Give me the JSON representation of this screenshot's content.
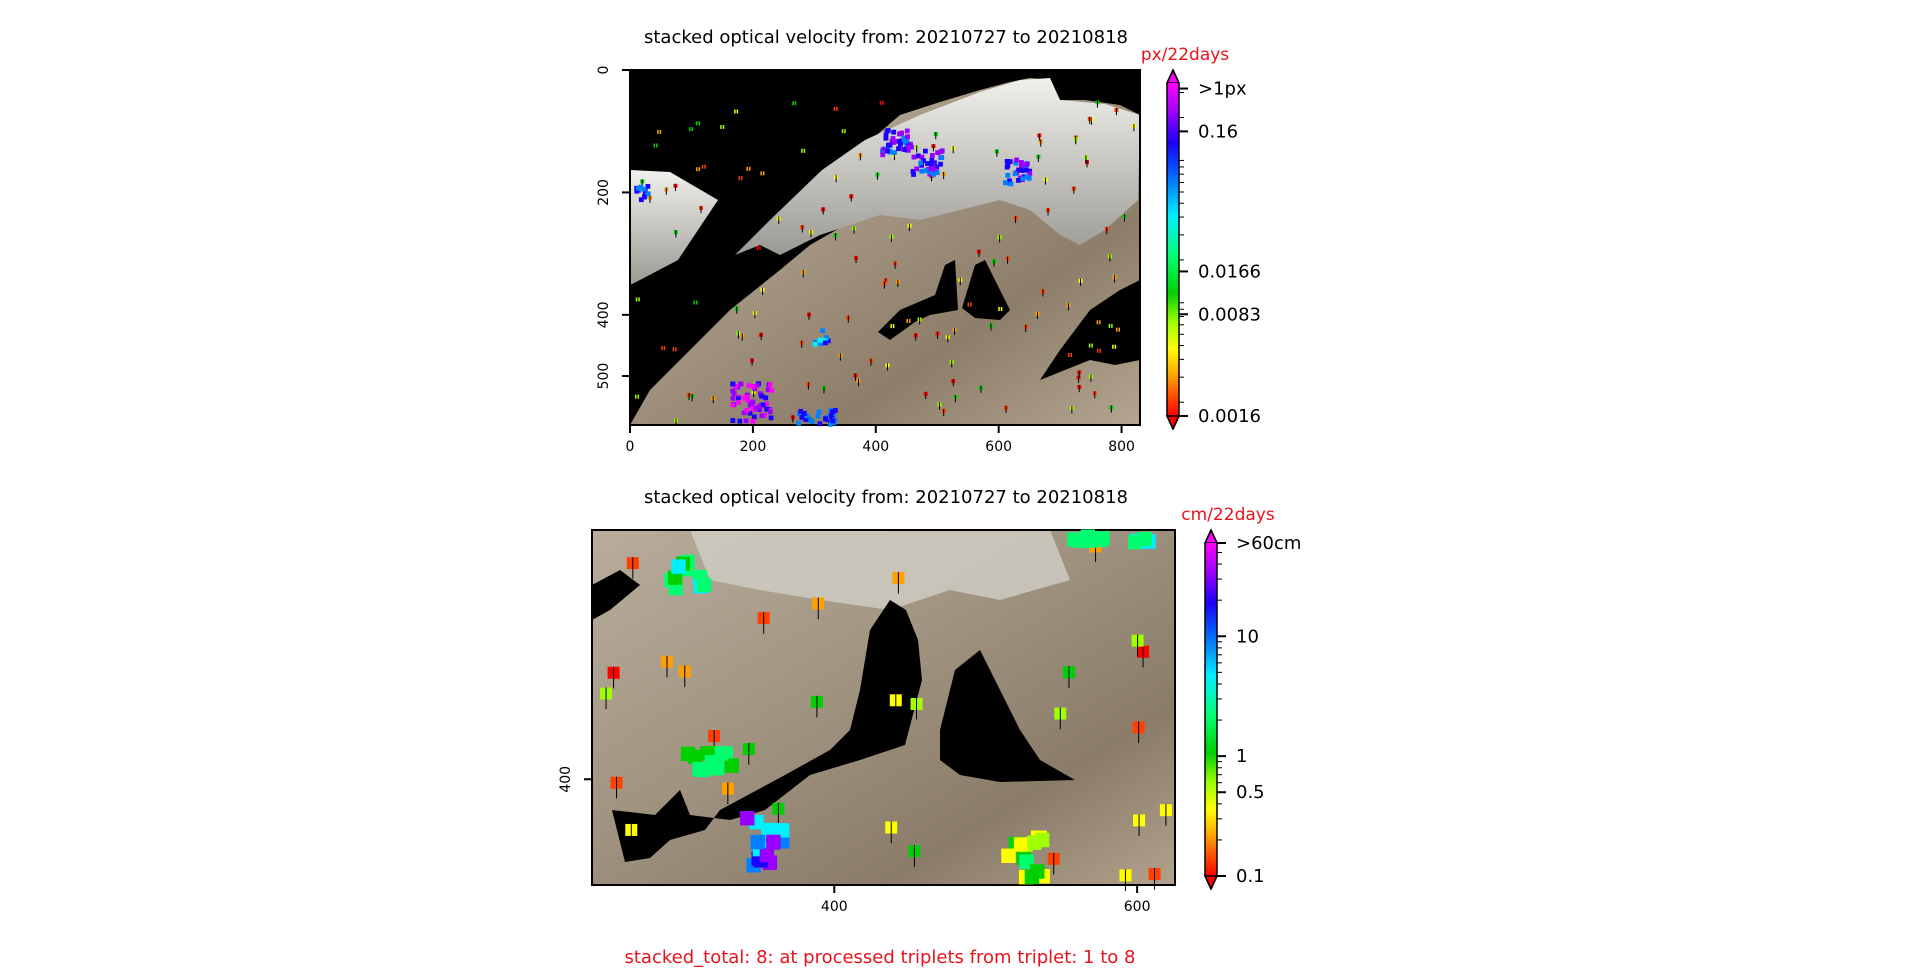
{
  "figure": {
    "footer": "stacked_total: 8: at processed triplets from triplet: 1 to 8"
  },
  "colors": {
    "bar_top": "#ff00ff",
    "bar_stops": [
      "#ff00ff",
      "#9a00ff",
      "#1a00ff",
      "#0080ff",
      "#00f0ff",
      "#00ff70",
      "#00d000",
      "#a0ff00",
      "#ffff00",
      "#ffa000",
      "#ff4000",
      "#ff0000"
    ],
    "background": "#000000",
    "terrain": "#9a8c78",
    "snow": "#dcdcd6"
  },
  "chart_data": [
    {
      "type": "heatmap",
      "name": "top-panel",
      "title": "stacked optical velocity from: 20210727 to 20210818",
      "xlim": [
        0,
        830
      ],
      "ylim": [
        580,
        0
      ],
      "xticks": [
        0,
        200,
        400,
        600,
        800
      ],
      "yticks": [
        0,
        200,
        400,
        500
      ],
      "colorbar": {
        "unit": "px/22days",
        "scale": "log",
        "range": [
          0.0016,
          0.35
        ],
        "extend": "both",
        "ticks": [
          {
            "value": 0.0016,
            "label": "0.0016"
          },
          {
            "value": 0.0083,
            "label": "0.0083"
          },
          {
            "value": 0.0166,
            "label": "0.0166"
          },
          {
            "value": 0.16,
            "label": "0.16"
          },
          {
            "value": 0.32,
            "label": ">1px"
          }
        ]
      }
    },
    {
      "type": "heatmap",
      "name": "bottom-panel",
      "title": "stacked optical velocity from: 20210727 to 20210818",
      "xlim": [
        240,
        625
      ],
      "ylim": [
        470,
        235
      ],
      "xticks": [
        400,
        600
      ],
      "yticks": [
        400
      ],
      "colorbar": {
        "unit": "cm/22days",
        "scale": "log",
        "range": [
          0.1,
          60
        ],
        "extend": "both",
        "ticks": [
          {
            "value": 0.1,
            "label": "0.1"
          },
          {
            "value": 0.5,
            "label": "0.5"
          },
          {
            "value": 1,
            "label": "1"
          },
          {
            "value": 10,
            "label": "10"
          },
          {
            "value": 60,
            "label": ">60cm"
          }
        ]
      }
    }
  ]
}
